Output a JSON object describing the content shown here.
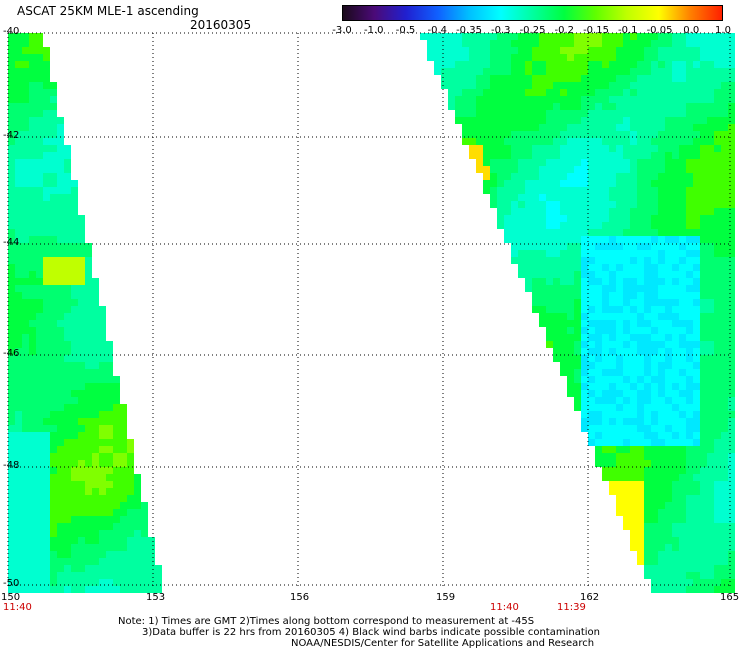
{
  "header": {
    "title": "ASCAT 25KM MLE-1 ascending",
    "date": "20160305"
  },
  "colorbar": {
    "labels": [
      "-3.0",
      "-1.0",
      "-0.5",
      "-0.4",
      "-0.35",
      "-0.3",
      "-0.25",
      "-0.2",
      "-0.15",
      "-0.1",
      "-0.05",
      "0.0",
      "1.0"
    ],
    "colors": [
      "#1a0a1a",
      "#4b0a78",
      "#2020d0",
      "#1060ff",
      "#00c0ff",
      "#00ffff",
      "#00ffa0",
      "#00ff40",
      "#60ff00",
      "#c0ff00",
      "#ffff00",
      "#ff8000",
      "#ff2000"
    ]
  },
  "axes": {
    "lat_labels": [
      "-40",
      "-42",
      "-44",
      "-46",
      "-48",
      "-50"
    ],
    "lon_labels": [
      "150",
      "153",
      "156",
      "159",
      "162",
      "165"
    ],
    "lat_range": [
      -50,
      -40
    ],
    "lon_range": [
      150,
      165
    ]
  },
  "time_labels": [
    "11:40",
    "11:40",
    "11:39"
  ],
  "notes": [
    "Note: 1) Times are GMT 2)Times along bottom correspond to measurement at -45S",
    "3)Data buffer is 22 hrs from 20160305 4) Black wind barbs indicate possible contamination",
    "NOAA/NESDIS/Center for Satellite Applications and Research"
  ]
}
